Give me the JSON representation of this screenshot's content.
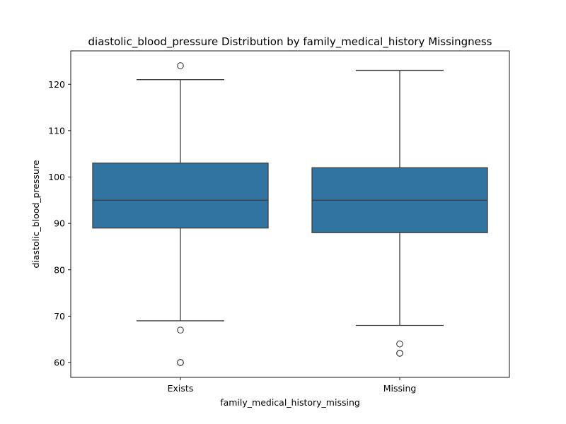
{
  "chart_data": {
    "type": "box",
    "title": "diastolic_blood_pressure Distribution by family_medical_history Missingness",
    "xlabel": "family_medical_history_missing",
    "ylabel": "diastolic_blood_pressure",
    "ylim": [
      56.8,
      127.2
    ],
    "yticks": [
      60,
      70,
      80,
      90,
      100,
      110,
      120
    ],
    "grid": false,
    "box_color": "#3274a1",
    "line_color": "#3f3f3f",
    "categories": [
      "Exists",
      "Missing"
    ],
    "boxes": [
      {
        "category": "Exists",
        "whisker_low": 69,
        "q1": 89,
        "median": 95,
        "q3": 103,
        "whisker_high": 121,
        "outliers": [
          124,
          67,
          60,
          60
        ]
      },
      {
        "category": "Missing",
        "whisker_low": 68,
        "q1": 88,
        "median": 95,
        "q3": 102,
        "whisker_high": 123,
        "outliers": [
          64,
          62,
          62
        ]
      }
    ]
  }
}
